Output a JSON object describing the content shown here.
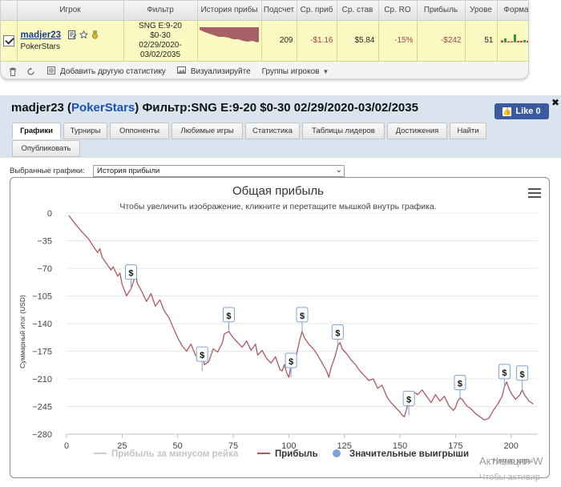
{
  "stats_table": {
    "headers": [
      "",
      "Игрок",
      "Фильтр",
      "История прибы",
      "Подсчет",
      "Ср. приб",
      "Ср. став",
      "Ср. RO",
      "Прибыль",
      "Урове",
      "Форма",
      ""
    ],
    "row": {
      "player_name": "madjer23",
      "site": "PokerStars",
      "filter_line1": "SNG E:9-20",
      "filter_line2": "$0-30",
      "filter_line3": "02/29/2020-",
      "filter_line4": "03/02/2035",
      "count": "209",
      "avg_profit": "-$1.16",
      "avg_stake": "$5.84",
      "avg_roi": "-15%",
      "profit": "-$242",
      "level": "51",
      "close": "x"
    },
    "form_bars": [
      {
        "h": 0.25,
        "color": "#c03a3a"
      },
      {
        "h": 0.5,
        "color": "#2e9b2e"
      },
      {
        "h": 0.15,
        "color": "#c03a3a"
      },
      {
        "h": 0.15,
        "color": "#c03a3a"
      },
      {
        "h": 1.0,
        "color": "#2e9b2e"
      },
      {
        "h": 0.2,
        "color": "#c03a3a"
      },
      {
        "h": 0.2,
        "color": "#c03a3a"
      },
      {
        "h": 0.3,
        "color": "#2e9b2e"
      },
      {
        "h": 0.2,
        "color": "#c03a3a"
      },
      {
        "h": 0.15,
        "color": "#c03a3a"
      }
    ]
  },
  "toolbar": {
    "add_stats": "Добавить другую статистику",
    "visualize": "Визуализируйте",
    "groups": "Группы игроков"
  },
  "profile": {
    "name": "madjer23",
    "site": "PokerStars",
    "filter": "Фильтр:SNG E:9-20 $0-30 02/29/2020-03/02/2035",
    "fb_like": "Like 0",
    "close": "✖"
  },
  "tabs": [
    {
      "label": "Графики",
      "active": true
    },
    {
      "label": "Турниры"
    },
    {
      "label": "Оппоненты"
    },
    {
      "label": "Любимые игры"
    },
    {
      "label": "Статистика"
    },
    {
      "label": "Таблицы лидеров"
    },
    {
      "label": "Достижения"
    },
    {
      "label": "Найти"
    },
    {
      "label": "Опубликовать"
    }
  ],
  "chart_selector": {
    "label": "Выбранные графики:",
    "selected": "История прибыли"
  },
  "activation": {
    "line1": "Активация W",
    "line2": "Чтобы активир"
  },
  "chart_data": {
    "type": "line",
    "title": "Общая прибыль",
    "subtitle": "Чтобы увеличить изображение, кликните и перетащите мышкой внутрь графика.",
    "xlabel": "Номер игры",
    "ylabel": "Суммарный итог (USD)",
    "xlim": [
      0,
      212
    ],
    "ylim": [
      -280,
      0
    ],
    "x_ticks": [
      0,
      25,
      50,
      75,
      100,
      125,
      150,
      175,
      200
    ],
    "y_ticks": [
      0,
      -35,
      -70,
      -105,
      -140,
      -175,
      -210,
      -245,
      -280
    ],
    "legend_position": "bottom",
    "series": [
      {
        "name": "Прибыль за минусом рейка",
        "color": "#cccccc"
      },
      {
        "name": "Прибыль",
        "color": "#b05a5f",
        "points": [
          [
            1,
            -3
          ],
          [
            4,
            -14
          ],
          [
            7,
            -24
          ],
          [
            10,
            -33
          ],
          [
            12,
            -42
          ],
          [
            14,
            -50
          ],
          [
            15,
            -45
          ],
          [
            16,
            -56
          ],
          [
            18,
            -64
          ],
          [
            20,
            -72
          ],
          [
            21,
            -68
          ],
          [
            23,
            -80
          ],
          [
            24,
            -76
          ],
          [
            25,
            -90
          ],
          [
            27,
            -105
          ],
          [
            28,
            -100
          ],
          [
            29,
            -96
          ],
          [
            30,
            -88
          ],
          [
            31,
            -78
          ],
          [
            32,
            -90
          ],
          [
            34,
            -100
          ],
          [
            36,
            -112
          ],
          [
            38,
            -102
          ],
          [
            40,
            -118
          ],
          [
            42,
            -110
          ],
          [
            44,
            -124
          ],
          [
            46,
            -132
          ],
          [
            48,
            -145
          ],
          [
            50,
            -158
          ],
          [
            52,
            -168
          ],
          [
            54,
            -175
          ],
          [
            56,
            -166
          ],
          [
            58,
            -180
          ],
          [
            60,
            -186
          ],
          [
            61,
            -178
          ],
          [
            62,
            -192
          ],
          [
            64,
            -188
          ],
          [
            66,
            -172
          ],
          [
            68,
            -176
          ],
          [
            70,
            -165
          ],
          [
            71,
            -153
          ],
          [
            73,
            -150
          ],
          [
            75,
            -158
          ],
          [
            77,
            -164
          ],
          [
            79,
            -170
          ],
          [
            81,
            -162
          ],
          [
            83,
            -174
          ],
          [
            85,
            -166
          ],
          [
            86,
            -180
          ],
          [
            88,
            -174
          ],
          [
            90,
            -184
          ],
          [
            92,
            -190
          ],
          [
            94,
            -182
          ],
          [
            96,
            -198
          ],
          [
            97,
            -200
          ],
          [
            98,
            -192
          ],
          [
            99,
            -202
          ],
          [
            100,
            -208
          ],
          [
            101,
            -194
          ],
          [
            103,
            -186
          ],
          [
            104,
            -172
          ],
          [
            105,
            -160
          ],
          [
            106,
            -150
          ],
          [
            107,
            -158
          ],
          [
            109,
            -166
          ],
          [
            111,
            -172
          ],
          [
            113,
            -180
          ],
          [
            115,
            -190
          ],
          [
            117,
            -200
          ],
          [
            118,
            -208
          ],
          [
            119,
            -196
          ],
          [
            121,
            -180
          ],
          [
            122,
            -168
          ],
          [
            123,
            -164
          ],
          [
            124,
            -172
          ],
          [
            126,
            -178
          ],
          [
            128,
            -186
          ],
          [
            130,
            -192
          ],
          [
            132,
            -200
          ],
          [
            134,
            -206
          ],
          [
            136,
            -212
          ],
          [
            138,
            -210
          ],
          [
            140,
            -222
          ],
          [
            142,
            -218
          ],
          [
            144,
            -232
          ],
          [
            146,
            -240
          ],
          [
            148,
            -246
          ],
          [
            150,
            -252
          ],
          [
            151,
            -256
          ],
          [
            152,
            -258
          ],
          [
            153,
            -248
          ],
          [
            154,
            -238
          ],
          [
            155,
            -232
          ],
          [
            156,
            -226
          ],
          [
            158,
            -230
          ],
          [
            160,
            -224
          ],
          [
            162,
            -232
          ],
          [
            164,
            -240
          ],
          [
            166,
            -230
          ],
          [
            168,
            -238
          ],
          [
            170,
            -232
          ],
          [
            172,
            -244
          ],
          [
            174,
            -250
          ],
          [
            175,
            -246
          ],
          [
            176,
            -238
          ],
          [
            177,
            -234
          ],
          [
            178,
            -236
          ],
          [
            180,
            -244
          ],
          [
            182,
            -248
          ],
          [
            184,
            -254
          ],
          [
            186,
            -258
          ],
          [
            188,
            -262
          ],
          [
            190,
            -260
          ],
          [
            192,
            -250
          ],
          [
            194,
            -242
          ],
          [
            196,
            -232
          ],
          [
            197,
            -220
          ],
          [
            198,
            -214
          ],
          [
            199,
            -222
          ],
          [
            200,
            -228
          ],
          [
            202,
            -236
          ],
          [
            204,
            -230
          ],
          [
            205,
            -224
          ],
          [
            206,
            -230
          ],
          [
            208,
            -238
          ],
          [
            210,
            -242
          ]
        ]
      },
      {
        "name": "Значительные выигрыши",
        "color": "#7ca2d8"
      }
    ],
    "big_wins": [
      {
        "x": 29,
        "y": -96,
        "label": "$"
      },
      {
        "x": 61,
        "y": -200,
        "label": "$"
      },
      {
        "x": 73,
        "y": -150,
        "label": "$"
      },
      {
        "x": 101,
        "y": -208,
        "label": "$"
      },
      {
        "x": 106,
        "y": -150,
        "label": "$"
      },
      {
        "x": 122,
        "y": -172,
        "label": "$"
      },
      {
        "x": 154,
        "y": -256,
        "label": "$"
      },
      {
        "x": 177,
        "y": -236,
        "label": "$"
      },
      {
        "x": 197,
        "y": -222,
        "label": "$"
      },
      {
        "x": 205,
        "y": -224,
        "label": "$"
      }
    ]
  }
}
